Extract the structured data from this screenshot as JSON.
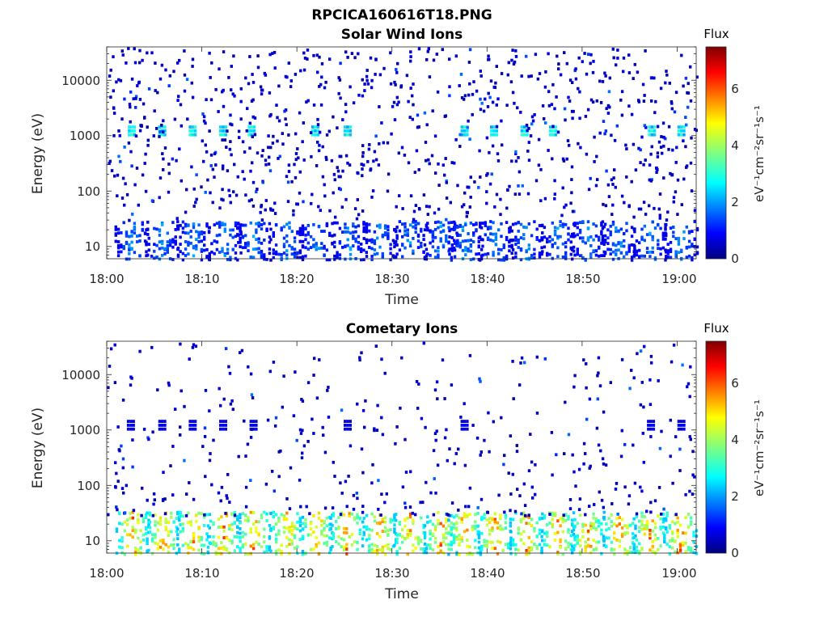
{
  "figure_title": "RPCICA160616T18.PNG",
  "colorbar_label": "Flux",
  "colorbar_unit": "eV⁻¹cm⁻²sr⁻¹s⁻¹",
  "chart_data": [
    {
      "type": "heatmap",
      "title": "Solar Wind Ions",
      "xlabel": "Time",
      "ylabel": "Energy (eV)",
      "yscale": "log",
      "xlim": [
        "18:00",
        "19:02"
      ],
      "ylim": [
        6,
        40000
      ],
      "xticks": [
        "18:00",
        "18:10",
        "18:20",
        "18:30",
        "18:40",
        "18:50",
        "19:00"
      ],
      "yticks": [
        "10",
        "100",
        "1000",
        "10000"
      ],
      "colorbar": {
        "label": "Flux",
        "range": [
          0,
          7.5
        ],
        "ticks": [
          "0",
          "2",
          "4",
          "6"
        ],
        "colormap": "jet"
      },
      "features": [
        {
          "name": "solar wind beam",
          "energy_eV": 1300,
          "flux": 2.8,
          "times_min": [
            2.5,
            5.7,
            8.9,
            12.1,
            15.1,
            21.8,
            25.2,
            37.5,
            40.6,
            43.8,
            46.8,
            57.2,
            60.3
          ]
        },
        {
          "name": "low energy ions",
          "energy_range_eV": [
            6,
            30
          ],
          "flux_range": [
            0.5,
            2.3
          ],
          "times_min": [
            2.5,
            5.7,
            9.0,
            12.3,
            15.3,
            18.8,
            21.9,
            25.5,
            28.6,
            31.8,
            35.0,
            37.6,
            40.8,
            44.0,
            47.3,
            50.5,
            53.7,
            57.0,
            60.3
          ]
        },
        {
          "name": "background counts",
          "energy_range_eV": [
            30,
            40000
          ],
          "flux": 0.5
        }
      ]
    },
    {
      "type": "heatmap",
      "title": "Cometary Ions",
      "xlabel": "Time",
      "ylabel": "Energy (eV)",
      "yscale": "log",
      "xlim": [
        "18:00",
        "19:02"
      ],
      "ylim": [
        6,
        40000
      ],
      "xticks": [
        "18:00",
        "18:10",
        "18:20",
        "18:30",
        "18:40",
        "18:50",
        "19:00"
      ],
      "yticks": [
        "10",
        "100",
        "1000",
        "10000"
      ],
      "colorbar": {
        "label": "Flux",
        "range": [
          0,
          7.5
        ],
        "ticks": [
          "0",
          "2",
          "4",
          "6"
        ],
        "colormap": "jet"
      },
      "features": [
        {
          "name": "cometary ions",
          "energy_range_eV": [
            6,
            35
          ],
          "flux_range": [
            2,
            6.3
          ],
          "times_min": [
            2.6,
            5.8,
            9.0,
            12.2,
            15.3,
            18.8,
            21.9,
            25.1,
            28.6,
            31.8,
            35.0,
            37.5,
            40.7,
            44.0,
            47.3,
            50.5,
            53.8,
            57.0,
            60.2
          ]
        },
        {
          "name": "keV ions",
          "energy_eV": 1300,
          "flux": 0.8,
          "times_min": [
            2.4,
            5.7,
            8.9,
            12.1,
            15.3,
            25.2,
            37.5,
            57.1,
            60.3
          ]
        },
        {
          "name": "background counts",
          "energy_range_eV": [
            30,
            40000
          ],
          "flux": 0.5
        }
      ]
    }
  ]
}
